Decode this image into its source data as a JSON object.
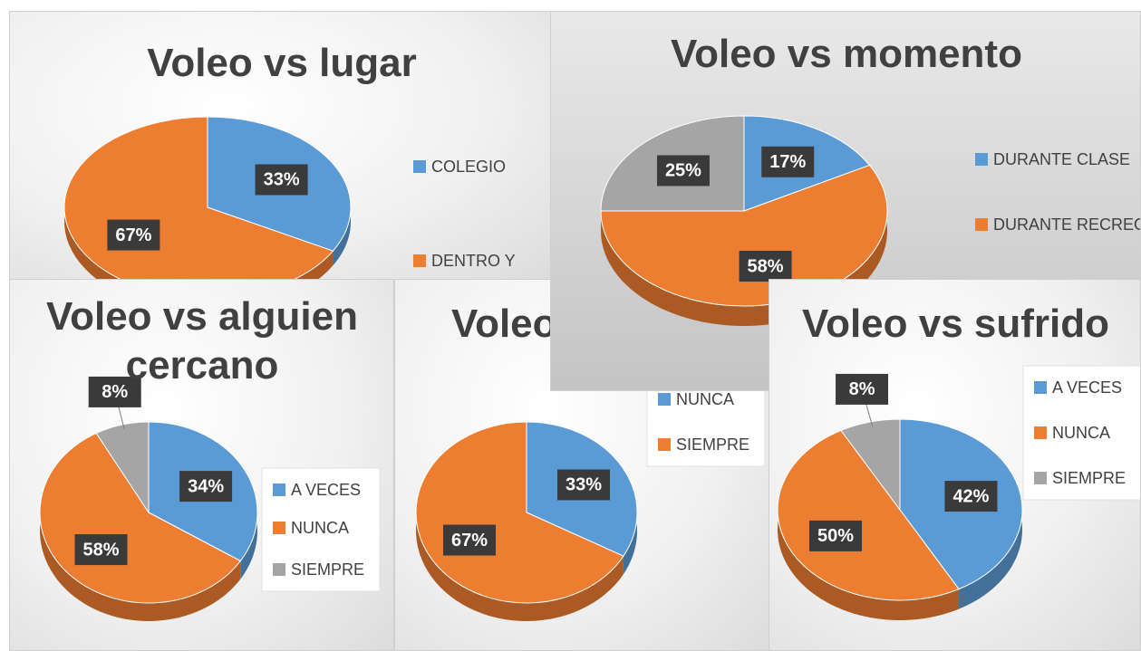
{
  "chart_data": [
    {
      "type": "pie",
      "title": "Voleo vs lugar",
      "categories": [
        "COLEGIO",
        "DENTRO Y"
      ],
      "values": [
        33,
        67
      ],
      "value_labels": [
        "33%",
        "67%"
      ],
      "colors": [
        "#5b9bd5",
        "#ed7d31"
      ]
    },
    {
      "type": "pie",
      "title": "Voleo vs alguien cercano",
      "categories": [
        "A VECES",
        "NUNCA",
        "SIEMPRE"
      ],
      "values": [
        34,
        58,
        8
      ],
      "value_labels": [
        "34%",
        "58%",
        "8%"
      ],
      "colors": [
        "#5b9bd5",
        "#ed7d31",
        "#a5a5a5"
      ]
    },
    {
      "type": "pie",
      "title": "Voleo",
      "categories": [
        "NUNCA",
        "SIEMPRE"
      ],
      "values": [
        33,
        67
      ],
      "value_labels": [
        "33%",
        "67%"
      ],
      "colors": [
        "#5b9bd5",
        "#ed7d31"
      ]
    },
    {
      "type": "pie",
      "title": "Voleo vs momento",
      "categories": [
        "DURANTE CLASE",
        "DURANTE RECREO",
        null
      ],
      "values": [
        17,
        58,
        25
      ],
      "value_labels": [
        "17%",
        "58%",
        "25%"
      ],
      "colors": [
        "#5b9bd5",
        "#ed7d31",
        "#a5a5a5"
      ]
    },
    {
      "type": "pie",
      "title": "Voleo vs sufrido",
      "categories": [
        "A VECES",
        "NUNCA",
        "SIEMPRE"
      ],
      "values": [
        42,
        50,
        8
      ],
      "value_labels": [
        "42%",
        "50%",
        "8%"
      ],
      "colors": [
        "#5b9bd5",
        "#ed7d31",
        "#a5a5a5"
      ]
    }
  ]
}
